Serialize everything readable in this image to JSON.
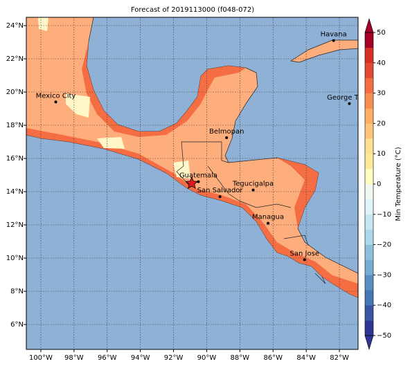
{
  "title": "Forecast of 2019113000 (f048-072)",
  "map": {
    "lon_range": [
      -100.875,
      -80.875
    ],
    "lat_range": [
      4.5,
      24.5
    ],
    "lon_ticks": [
      {
        "value": -100,
        "label": "100°W"
      },
      {
        "value": -98,
        "label": "98°W"
      },
      {
        "value": -96,
        "label": "96°W"
      },
      {
        "value": -94,
        "label": "94°W"
      },
      {
        "value": -92,
        "label": "92°W"
      },
      {
        "value": -90,
        "label": "90°W"
      },
      {
        "value": -88,
        "label": "88°W"
      },
      {
        "value": -86,
        "label": "86°W"
      },
      {
        "value": -84,
        "label": "84°W"
      },
      {
        "value": -82,
        "label": "82°W"
      }
    ],
    "lat_ticks": [
      {
        "value": 6,
        "label": "6°N"
      },
      {
        "value": 8,
        "label": "8°N"
      },
      {
        "value": 10,
        "label": "10°N"
      },
      {
        "value": 12,
        "label": "12°N"
      },
      {
        "value": 14,
        "label": "14°N"
      },
      {
        "value": 16,
        "label": "16°N"
      },
      {
        "value": 18,
        "label": "18°N"
      },
      {
        "value": 20,
        "label": "20°N"
      },
      {
        "value": 22,
        "label": "22°N"
      },
      {
        "value": 24,
        "label": "24°N"
      }
    ],
    "cities": [
      {
        "name": "Havana",
        "lon": -82.35,
        "lat": 23.1
      },
      {
        "name": "Mexico City",
        "lon": -99.1,
        "lat": 19.4
      },
      {
        "name": "George Town",
        "lon": -81.4,
        "lat": 19.3
      },
      {
        "name": "Belmopan",
        "lon": -88.8,
        "lat": 17.25
      },
      {
        "name": "Guatemala",
        "lon": -90.5,
        "lat": 14.6
      },
      {
        "name": "San Salvador",
        "lon": -89.2,
        "lat": 13.7
      },
      {
        "name": "Tegucigalpa",
        "lon": -87.2,
        "lat": 14.1
      },
      {
        "name": "Managua",
        "lon": -86.3,
        "lat": 12.1
      },
      {
        "name": "San Jose",
        "lon": -84.1,
        "lat": 9.9
      }
    ],
    "forecast_point": {
      "lon": -90.9,
      "lat": 14.5
    }
  },
  "colorbar": {
    "label": "Min Temperature (°C)",
    "lim": [
      -50,
      50
    ],
    "ticks": [
      {
        "value": -50,
        "label": "−50"
      },
      {
        "value": -40,
        "label": "−40"
      },
      {
        "value": -30,
        "label": "−30"
      },
      {
        "value": -20,
        "label": "−20"
      },
      {
        "value": -10,
        "label": "−10"
      },
      0,
      10,
      20,
      30,
      40,
      50
    ],
    "colors": [
      "#313695",
      "#3a55a4",
      "#4575b4",
      "#5b8ec1",
      "#74add1",
      "#8ebfdb",
      "#abd9e9",
      "#c6e6f0",
      "#e0f3f8",
      "#f0f9f0",
      "#fefec0",
      "#fee99a",
      "#fee090",
      "#fdc47c",
      "#fdae61",
      "#f98e52",
      "#f46d43",
      "#e34a33",
      "#d73027",
      "#a50026"
    ]
  }
}
